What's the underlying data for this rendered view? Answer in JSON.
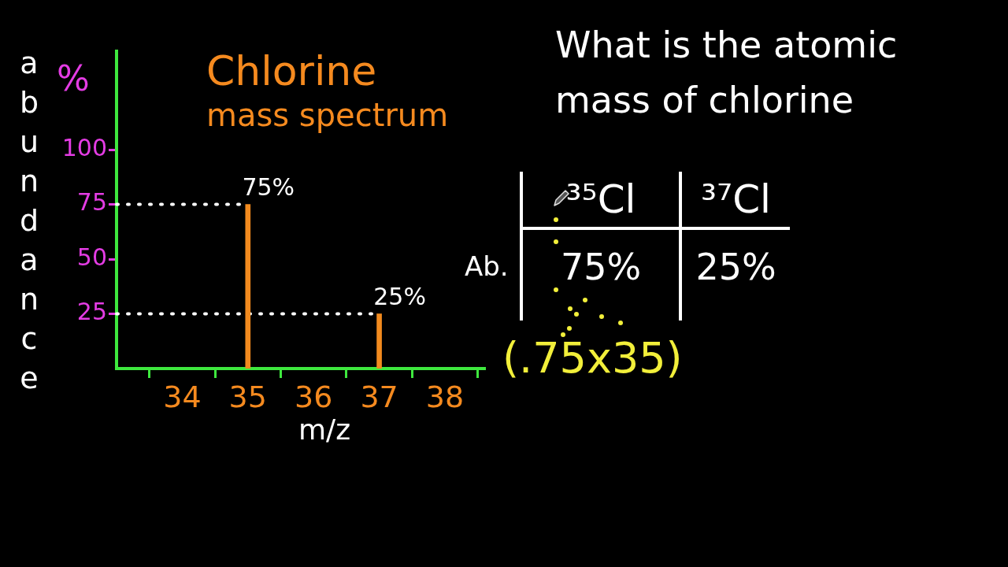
{
  "chart_data": [
    {
      "type": "bar",
      "title": "Chlorine mass spectrum",
      "xlabel": "m/z",
      "ylabel": "abundance",
      "annotations": [
        "%"
      ],
      "x": [
        35,
        37
      ],
      "values": [
        75,
        25
      ],
      "value_labels": [
        "75%",
        "25%"
      ],
      "color": "#f28a1e",
      "xlim": [
        33,
        38.6
      ],
      "xticks": [
        34,
        35,
        36,
        37,
        38
      ],
      "ylim": [
        0,
        145
      ],
      "yticks": [
        25,
        50,
        75,
        100
      ],
      "ref_lines": [
        {
          "axis": "y",
          "value": 75,
          "color": "#ffffff",
          "line_style": "dotted"
        },
        {
          "axis": "y",
          "value": 25,
          "color": "#ffffff",
          "line_style": "dotted"
        }
      ]
    },
    {
      "type": "other",
      "title": "What is the atomic mass of chlorine",
      "annotations": [
        "³⁵Cl",
        "³⁷Cl",
        "Ab.",
        "75%",
        "25%",
        "(.75x35)"
      ]
    }
  ]
}
